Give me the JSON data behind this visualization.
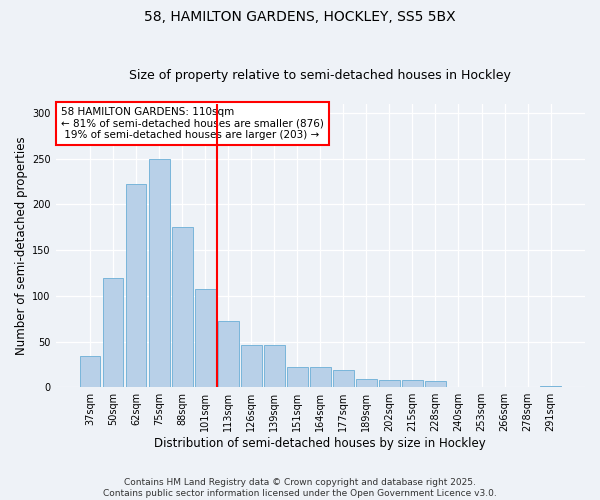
{
  "title_line1": "58, HAMILTON GARDENS, HOCKLEY, SS5 5BX",
  "title_line2": "Size of property relative to semi-detached houses in Hockley",
  "xlabel": "Distribution of semi-detached houses by size in Hockley",
  "ylabel": "Number of semi-detached properties",
  "categories": [
    "37sqm",
    "50sqm",
    "62sqm",
    "75sqm",
    "88sqm",
    "101sqm",
    "113sqm",
    "126sqm",
    "139sqm",
    "151sqm",
    "164sqm",
    "177sqm",
    "189sqm",
    "202sqm",
    "215sqm",
    "228sqm",
    "240sqm",
    "253sqm",
    "266sqm",
    "278sqm",
    "291sqm"
  ],
  "values": [
    34,
    120,
    222,
    250,
    175,
    108,
    72,
    46,
    46,
    22,
    22,
    19,
    9,
    8,
    8,
    7,
    0,
    0,
    0,
    0,
    1
  ],
  "bar_color": "#b8d0e8",
  "bar_edge_color": "#6aaed6",
  "property_label": "58 HAMILTON GARDENS: 110sqm",
  "pct_smaller": 81,
  "n_smaller": 876,
  "pct_larger": 19,
  "n_larger": 203,
  "vline_x": 5.5,
  "ylim": [
    0,
    310
  ],
  "yticks": [
    0,
    50,
    100,
    150,
    200,
    250,
    300
  ],
  "background_color": "#eef2f7",
  "plot_bg_color": "#eef2f7",
  "footer": "Contains HM Land Registry data © Crown copyright and database right 2025.\nContains public sector information licensed under the Open Government Licence v3.0.",
  "title_fontsize": 10,
  "subtitle_fontsize": 9,
  "axis_label_fontsize": 8.5,
  "tick_fontsize": 7,
  "footer_fontsize": 6.5,
  "ann_fontsize": 7.5
}
